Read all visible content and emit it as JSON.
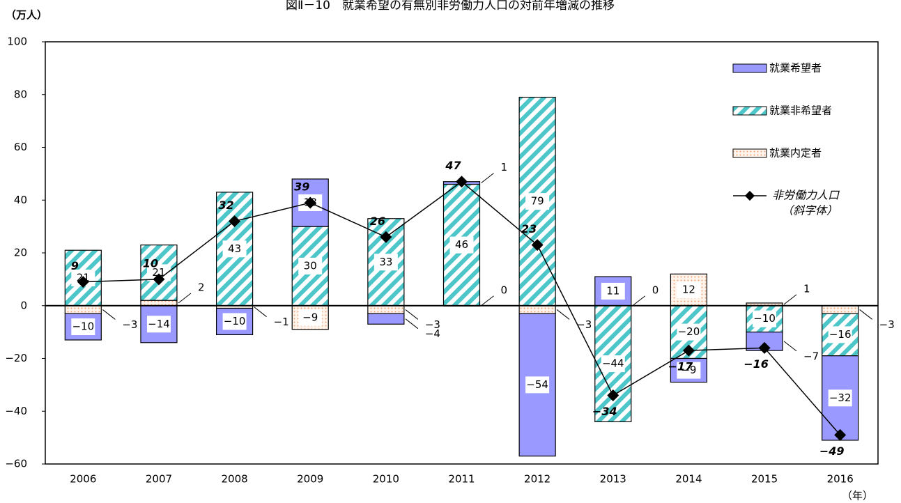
{
  "chart_data": {
    "type": "bar",
    "title": "図Ⅱ－10　就業希望の有無別非労働力人口の対前年増減の推移",
    "y_unit": "（万人）",
    "x_unit": "（年）",
    "line_note": "（斜字体）",
    "categories": [
      "2006",
      "2007",
      "2008",
      "2009",
      "2010",
      "2011",
      "2012",
      "2013",
      "2014",
      "2015",
      "2016"
    ],
    "series": [
      {
        "name": "就業希望者",
        "color": "#9999ff",
        "pattern": "solid",
        "values": [
          -10,
          -14,
          -10,
          18,
          -4,
          1,
          -54,
          11,
          -9,
          -7,
          -32
        ],
        "value_labels": [
          "−10",
          "−14",
          "−10",
          "18",
          "−4",
          "1",
          "−54",
          "11",
          "−9",
          "−7",
          "−32"
        ]
      },
      {
        "name": "就業非希望者",
        "color": "#4cc6c8",
        "pattern": "stripes",
        "values": [
          21,
          21,
          43,
          30,
          33,
          46,
          79,
          -44,
          -20,
          -10,
          -16
        ],
        "value_labels": [
          "21",
          "21",
          "43",
          "30",
          "33",
          "46",
          "79",
          "−44",
          "−20",
          "−10",
          "−16"
        ]
      },
      {
        "name": "就業内定者",
        "color": "#f0a070",
        "pattern": "dots",
        "values": [
          -3,
          2,
          -1,
          -9,
          -3,
          0,
          -3,
          0,
          12,
          1,
          -3
        ],
        "value_labels": [
          "−3",
          "2",
          "−1",
          "−9",
          "−3",
          "0",
          "−3",
          "0",
          "12",
          "1",
          "−3"
        ]
      },
      {
        "name": "非労働力人口",
        "type": "line",
        "color": "#000000",
        "values": [
          9,
          10,
          32,
          39,
          26,
          47,
          23,
          -34,
          -17,
          -16,
          -49
        ],
        "value_labels": [
          "9",
          "10",
          "32",
          "39",
          "26",
          "47",
          "23",
          "−34",
          "−17",
          "−16",
          "−49"
        ]
      }
    ],
    "ylim": [
      -60,
      100
    ],
    "yticks": [
      {
        "value": -60,
        "label": "−60"
      },
      {
        "value": -40,
        "label": "−40"
      },
      {
        "value": -20,
        "label": "−20"
      },
      0,
      20,
      40,
      60,
      80,
      100
    ]
  }
}
